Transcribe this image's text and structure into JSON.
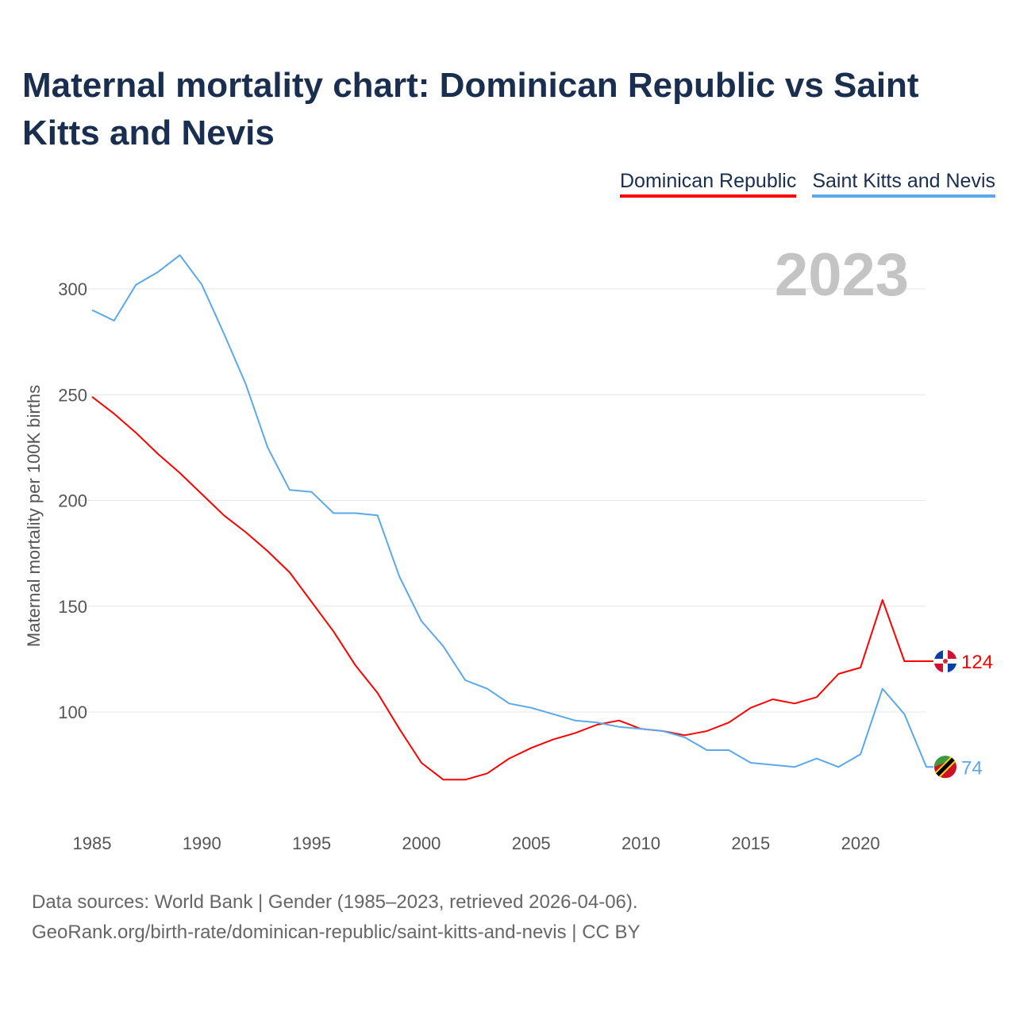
{
  "title": "Maternal mortality chart: Dominican Republic vs Saint Kitts and Nevis",
  "source_line1": "Data sources: World Bank | Gender (1985–2023, retrieved 2026-04-06).",
  "source_line2": "GeoRank.org/birth-rate/dominican-republic/saint-kitts-and-nevis | CC BY",
  "chart_data": {
    "type": "line",
    "title": "Maternal mortality chart: Dominican Republic vs Saint Kitts and Nevis",
    "xlabel": "",
    "ylabel": "Maternal mortality per 100K births",
    "year_label": "2023",
    "xlim": [
      1985,
      2023
    ],
    "ylim": [
      55,
      330
    ],
    "xticks": [
      1985,
      1990,
      1995,
      2000,
      2005,
      2010,
      2015,
      2020
    ],
    "yticks": [
      100,
      150,
      200,
      250,
      300
    ],
    "grid": true,
    "legend_position": "top-right",
    "x": [
      1985,
      1986,
      1987,
      1988,
      1989,
      1990,
      1991,
      1992,
      1993,
      1994,
      1995,
      1996,
      1997,
      1998,
      1999,
      2000,
      2001,
      2002,
      2003,
      2004,
      2005,
      2006,
      2007,
      2008,
      2009,
      2010,
      2011,
      2012,
      2013,
      2014,
      2015,
      2016,
      2017,
      2018,
      2019,
      2020,
      2021,
      2022,
      2023
    ],
    "series": [
      {
        "name": "Dominican Republic",
        "color": "#ff0000",
        "end_label": "124",
        "values": [
          249,
          241,
          232,
          222,
          213,
          203,
          193,
          185,
          176,
          166,
          152,
          138,
          122,
          109,
          92,
          76,
          68,
          68,
          71,
          78,
          83,
          87,
          90,
          94,
          96,
          92,
          91,
          89,
          91,
          95,
          102,
          106,
          104,
          107,
          118,
          121,
          153,
          124,
          124
        ]
      },
      {
        "name": "Saint Kitts and Nevis",
        "color": "#5ba8ea",
        "end_label": "74",
        "values": [
          290,
          285,
          302,
          308,
          316,
          302,
          279,
          255,
          225,
          205,
          204,
          194,
          194,
          193,
          164,
          143,
          131,
          115,
          111,
          104,
          102,
          99,
          96,
          95,
          93,
          92,
          91,
          88,
          82,
          82,
          76,
          75,
          74,
          78,
          74,
          80,
          111,
          99,
          74
        ]
      }
    ]
  }
}
